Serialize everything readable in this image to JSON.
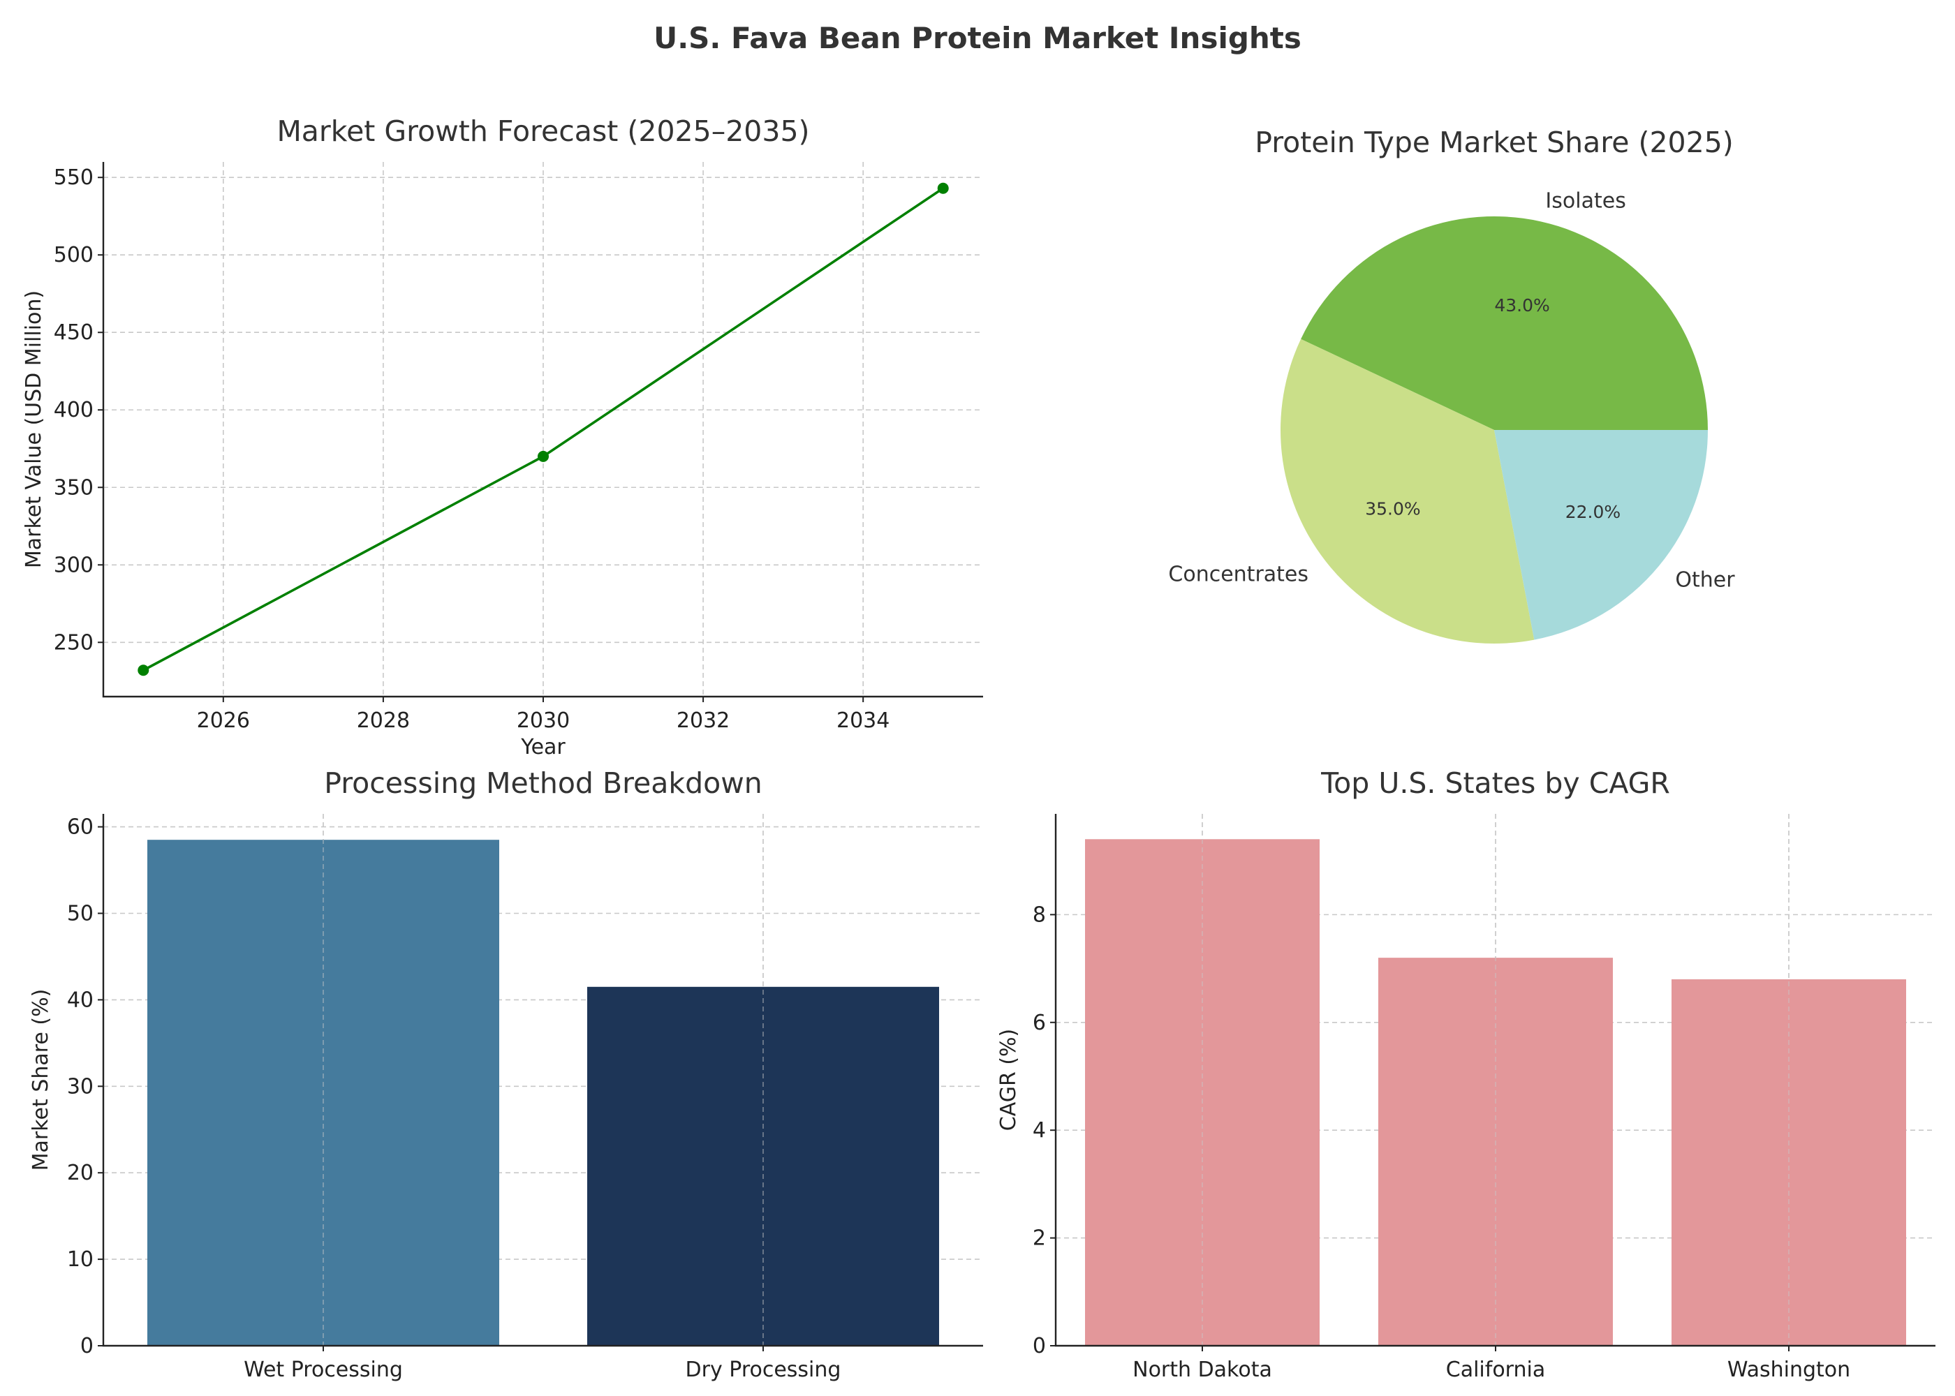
{
  "title": "U.S. Fava Bean Protein Market Insights",
  "chart_data": [
    {
      "type": "line",
      "title": "Market Growth Forecast (2025–2035)",
      "xlabel": "Year",
      "ylabel": "Market Value (USD Million)",
      "x": [
        2025,
        2030,
        2035
      ],
      "values": [
        232,
        370,
        543
      ],
      "xlim": [
        2024.5,
        2035.5
      ],
      "ylim": [
        215,
        560
      ],
      "xticks": [
        2026,
        2028,
        2030,
        2032,
        2034
      ],
      "yticks": [
        250,
        300,
        350,
        400,
        450,
        500,
        550
      ],
      "color": "#008000",
      "grid": true
    },
    {
      "type": "pie",
      "title": "Protein Type Market Share (2025)",
      "categories": [
        "Isolates",
        "Concentrates",
        "Other"
      ],
      "values": [
        43,
        35,
        22
      ],
      "pct_labels": [
        "43.0%",
        "35.0%",
        "22.0%"
      ],
      "colors": [
        "#77b947",
        "#cadf89",
        "#a6dadb"
      ]
    },
    {
      "type": "bar",
      "title": "Processing Method Breakdown",
      "xlabel": "",
      "ylabel": "Market Share (%)",
      "categories": [
        "Wet Processing",
        "Dry Processing"
      ],
      "values": [
        58.5,
        41.5
      ],
      "ylim": [
        0,
        61.5
      ],
      "yticks": [
        0,
        10,
        20,
        30,
        40,
        50,
        60
      ],
      "colors": [
        "#457b9d",
        "#1d3557"
      ],
      "grid": true
    },
    {
      "type": "bar",
      "title": "Top U.S. States by CAGR",
      "xlabel": "",
      "ylabel": "CAGR (%)",
      "categories": [
        "North Dakota",
        "California",
        "Washington"
      ],
      "values": [
        9.4,
        7.2,
        6.8
      ],
      "ylim": [
        0,
        9.87
      ],
      "yticks": [
        0,
        2,
        4,
        6,
        8
      ],
      "colors": [
        "#e3979a",
        "#e3979a",
        "#e3979a"
      ],
      "grid": true
    }
  ]
}
